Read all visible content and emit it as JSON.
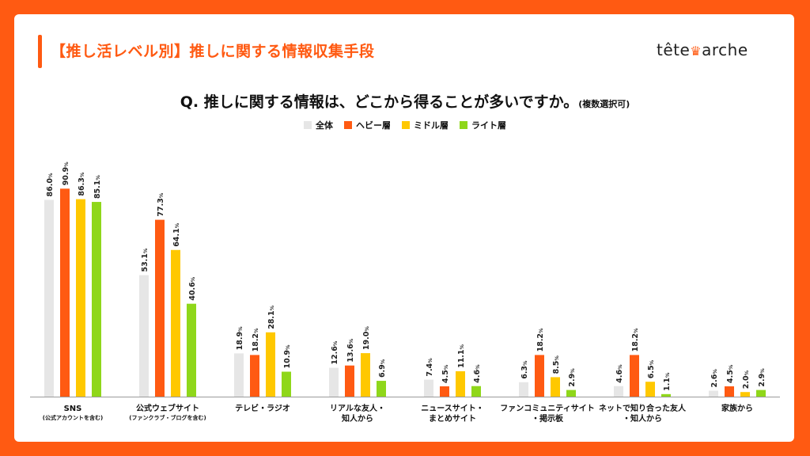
{
  "header": {
    "title": "【推し活レベル別】推しに関する情報収集手段",
    "logo_text_1": "tête",
    "logo_text_2": "arche"
  },
  "question": {
    "main": "Q. 推しに関する情報は、どこから得ることが多いですか。",
    "note": "(複数選択可)"
  },
  "colors": {
    "all": "#e6e6e6",
    "heavy": "#ff5a12",
    "middle": "#ffc800",
    "light": "#8fd71a",
    "brand": "#ff5a12"
  },
  "chart_data": {
    "type": "bar",
    "title": "Q. 推しに関する情報は、どこから得ることが多いですか。",
    "ylim": [
      0,
      100
    ],
    "value_suffix": "%",
    "categories": [
      {
        "line1": "SNS",
        "line2": "(公式アカウントを含む)"
      },
      {
        "line1": "公式ウェブサイト",
        "line2": "(ファンクラブ・ブログを含む)"
      },
      {
        "line1": "テレビ・ラジオ",
        "line2": ""
      },
      {
        "line1": "リアルな友人・",
        "line2": "知人から"
      },
      {
        "line1": "ニュースサイト・",
        "line2": "まとめサイト"
      },
      {
        "line1": "ファンコミュニティサイト",
        "line2": "・掲示板"
      },
      {
        "line1": "ネットで知り合った友人",
        "line2": "・知人から"
      },
      {
        "line1": "家族から",
        "line2": ""
      }
    ],
    "series": [
      {
        "name": "全体",
        "key": "all",
        "values": [
          86.0,
          53.1,
          18.9,
          12.6,
          7.4,
          6.3,
          4.6,
          2.6
        ]
      },
      {
        "name": "ヘビー層",
        "key": "heavy",
        "values": [
          90.9,
          77.3,
          18.2,
          13.6,
          4.5,
          18.2,
          18.2,
          4.5
        ]
      },
      {
        "name": "ミドル層",
        "key": "middle",
        "values": [
          86.3,
          64.1,
          28.1,
          19.0,
          11.1,
          8.5,
          6.5,
          2.0
        ]
      },
      {
        "name": "ライト層",
        "key": "light",
        "values": [
          85.1,
          40.6,
          10.9,
          6.9,
          4.6,
          2.9,
          1.1,
          2.9
        ]
      }
    ]
  }
}
